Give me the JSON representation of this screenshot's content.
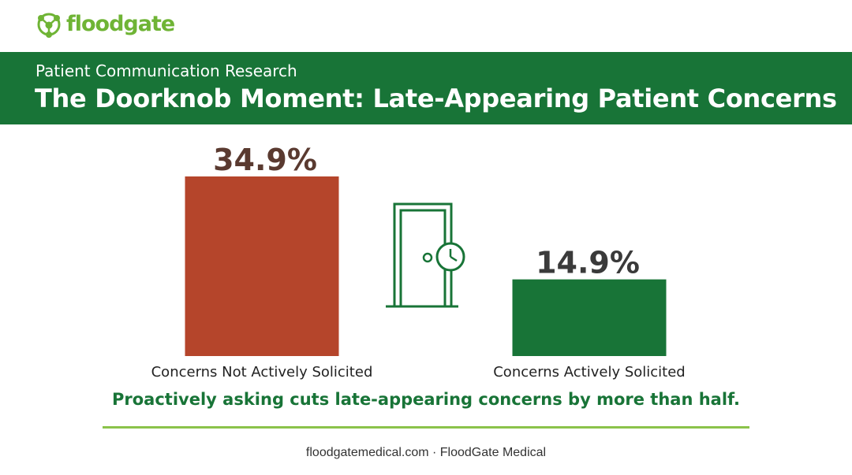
{
  "brand": {
    "name": "floodgate",
    "icon": "molecule-icon",
    "color": "#6fb435"
  },
  "header": {
    "subtitle": "Patient Communication Research",
    "title": "The Doorknob Moment: Late-Appearing Patient Concerns",
    "background": "#187437"
  },
  "illustration": {
    "icon": "door-with-clock-icon",
    "color": "#187437"
  },
  "chart_data": {
    "type": "bar",
    "title": "",
    "categories": [
      "Concerns Not Actively Solicited",
      "Concerns Actively Solicited"
    ],
    "values": [
      34.9,
      14.9
    ],
    "value_labels": [
      "34.9%",
      "14.9%"
    ],
    "colors": [
      "#b5452b",
      "#187437"
    ],
    "label_colors": [
      "#5a3a30",
      "#3a3a3a"
    ],
    "unit": "%",
    "ylim": [
      0,
      34.9
    ],
    "grid": false,
    "legend": "none"
  },
  "caption": "Proactively asking cuts late-appearing concerns by more than half.",
  "footer": "floodgatemedical.com · FloodGate Medical"
}
